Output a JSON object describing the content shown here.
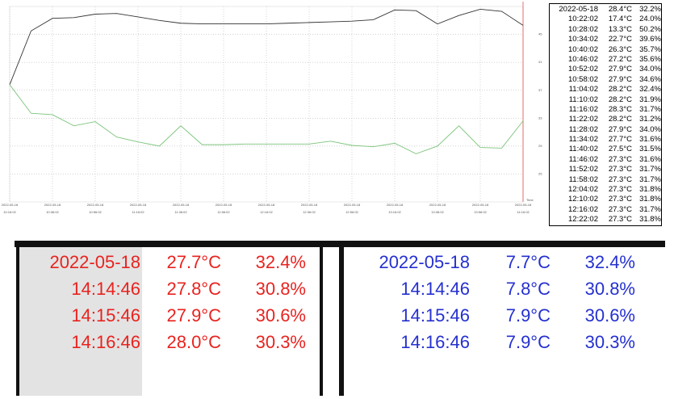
{
  "chart_data": {
    "type": "line",
    "date_label": "2022-05-18",
    "x_axis_label": "Time",
    "categories": [
      "10:16:02",
      null,
      "10:36:02",
      null,
      "10:56:02",
      null,
      "11:16:02",
      null,
      "11:36:02",
      null,
      "11:56:02",
      null,
      "12:16:02",
      null,
      "12:36:02",
      null,
      "12:56:02",
      null,
      "13:16:02",
      null,
      "13:36:02",
      null,
      "13:56:02",
      null,
      "14:16:02"
    ],
    "series": [
      {
        "color": "#333333",
        "values": [
          37.8,
          45.5,
          47.3,
          47.4,
          47.9,
          48.0,
          47.5,
          47.0,
          46.6,
          46.5,
          46.5,
          46.5,
          46.5,
          46.6,
          46.7,
          46.8,
          46.9,
          47.1,
          48.5,
          48.4,
          46.5,
          47.7,
          48.6,
          48.3,
          46.3
        ],
        "axis": "y2"
      },
      {
        "color": "#7cc47c",
        "values": [
          37.8,
          33.7,
          33.5,
          31.9,
          32.5,
          30.3,
          29.6,
          29.0,
          31.9,
          29.2,
          29.2,
          29.3,
          29.3,
          29.3,
          29.3,
          29.7,
          29.1,
          28.9,
          29.4,
          27.9,
          29.0,
          31.9,
          28.8,
          28.7,
          32.6
        ],
        "axis": "y2"
      }
    ],
    "y2lim": [
      21,
      49
    ],
    "y2ticks": [
      {
        "value": 45,
        "label": "45.0"
      },
      {
        "value": 41,
        "label": "41.0"
      },
      {
        "value": 37,
        "label": "37.0"
      },
      {
        "value": 33,
        "label": "33.0"
      },
      {
        "value": 29,
        "label": "29.0"
      },
      {
        "value": 25,
        "label": "25.0"
      }
    ],
    "grid": true,
    "axis_color": "#e05050"
  },
  "log_table": {
    "rows": [
      [
        "2022-05-18",
        "28.4°C",
        "32.2%"
      ],
      [
        "10:22:02",
        "17.4°C",
        "24.0%"
      ],
      [
        "10:28:02",
        "13.3°C",
        "50.2%"
      ],
      [
        "10:34:02",
        "22.7°C",
        "39.6%"
      ],
      [
        "10:40:02",
        "26.3°C",
        "35.7%"
      ],
      [
        "10:46:02",
        "27.2°C",
        "35.6%"
      ],
      [
        "10:52:02",
        "27.9°C",
        "34.0%"
      ],
      [
        "10:58:02",
        "27.9°C",
        "34.6%"
      ],
      [
        "11:04:02",
        "28.2°C",
        "32.4%"
      ],
      [
        "11:10:02",
        "28.2°C",
        "31.9%"
      ],
      [
        "11:16:02",
        "28.3°C",
        "31.7%"
      ],
      [
        "11:22:02",
        "28.2°C",
        "31.2%"
      ],
      [
        "11:28:02",
        "27.9°C",
        "34.0%"
      ],
      [
        "11:34:02",
        "27.7°C",
        "31.6%"
      ],
      [
        "11:40:02",
        "27.5°C",
        "31.5%"
      ],
      [
        "11:46:02",
        "27.3°C",
        "31.6%"
      ],
      [
        "11:52:02",
        "27.3°C",
        "31.7%"
      ],
      [
        "11:58:02",
        "27.3°C",
        "31.7%"
      ],
      [
        "12:04:02",
        "27.3°C",
        "31.8%"
      ],
      [
        "12:10:02",
        "27.3°C",
        "31.8%"
      ],
      [
        "12:16:02",
        "27.3°C",
        "31.7%"
      ],
      [
        "12:22:02",
        "27.3°C",
        "31.8%"
      ]
    ]
  },
  "panel_left": {
    "rows": [
      [
        "2022-05-18",
        "27.7°C",
        "32.4%"
      ],
      [
        "14:14:46",
        "27.8°C",
        "30.8%"
      ],
      [
        "14:15:46",
        "27.9°C",
        "30.6%"
      ],
      [
        "14:16:46",
        "28.0°C",
        "30.3%"
      ]
    ]
  },
  "panel_right": {
    "rows": [
      [
        "2022-05-18",
        "7.7°C",
        "32.4%"
      ],
      [
        "14:14:46",
        "7.8°C",
        "30.8%"
      ],
      [
        "14:15:46",
        "7.9°C",
        "30.6%"
      ],
      [
        "14:16:46",
        "7.9°C",
        "30.3%"
      ]
    ]
  }
}
